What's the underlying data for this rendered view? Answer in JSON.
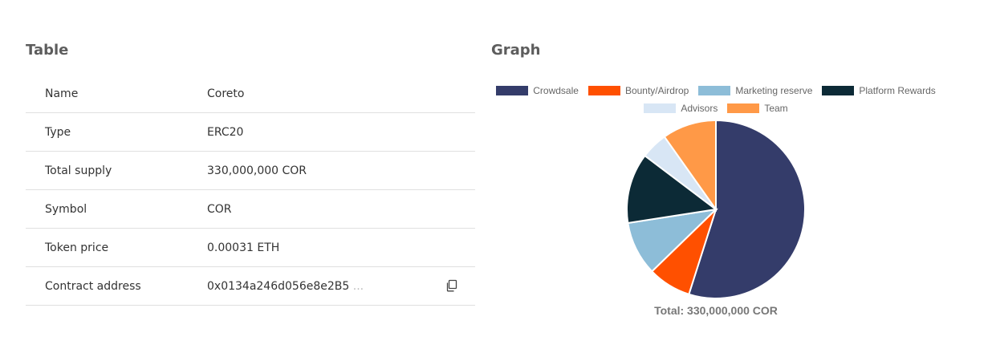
{
  "table": {
    "title": "Table",
    "rows": [
      {
        "label": "Name",
        "value": "Coreto"
      },
      {
        "label": "Type",
        "value": "ERC20"
      },
      {
        "label": "Total supply",
        "value": "330,000,000 COR"
      },
      {
        "label": "Symbol",
        "value": "COR"
      },
      {
        "label": "Token price",
        "value": "0.00031 ETH"
      },
      {
        "label": "Contract address",
        "value": "0x0134a246d056e8e2B5",
        "ellipsis": " ...",
        "icon": "copy-icon"
      }
    ]
  },
  "graph": {
    "title": "Graph",
    "total_label": "Total: 330,000,000 COR"
  },
  "chart_data": {
    "type": "pie",
    "title": "",
    "legend_placement": "top",
    "slices": [
      {
        "name": "Crowdsale",
        "value": 56,
        "color": "#343c6a"
      },
      {
        "name": "Bounty/Airdrop",
        "value": 8,
        "color": "#ff5000"
      },
      {
        "name": "Marketing reserve",
        "value": 10,
        "color": "#8dbdd8"
      },
      {
        "name": "Platform Rewards",
        "value": 13,
        "color": "#0c2a36"
      },
      {
        "name": "Advisors",
        "value": 5,
        "color": "#d8e6f5"
      },
      {
        "name": "Team",
        "value": 10,
        "color": "#ff9947"
      }
    ],
    "legend_rows": [
      [
        "Crowdsale",
        "Bounty/Airdrop",
        "Marketing reserve",
        "Platform Rewards"
      ],
      [
        "Advisors",
        "Team"
      ]
    ]
  }
}
